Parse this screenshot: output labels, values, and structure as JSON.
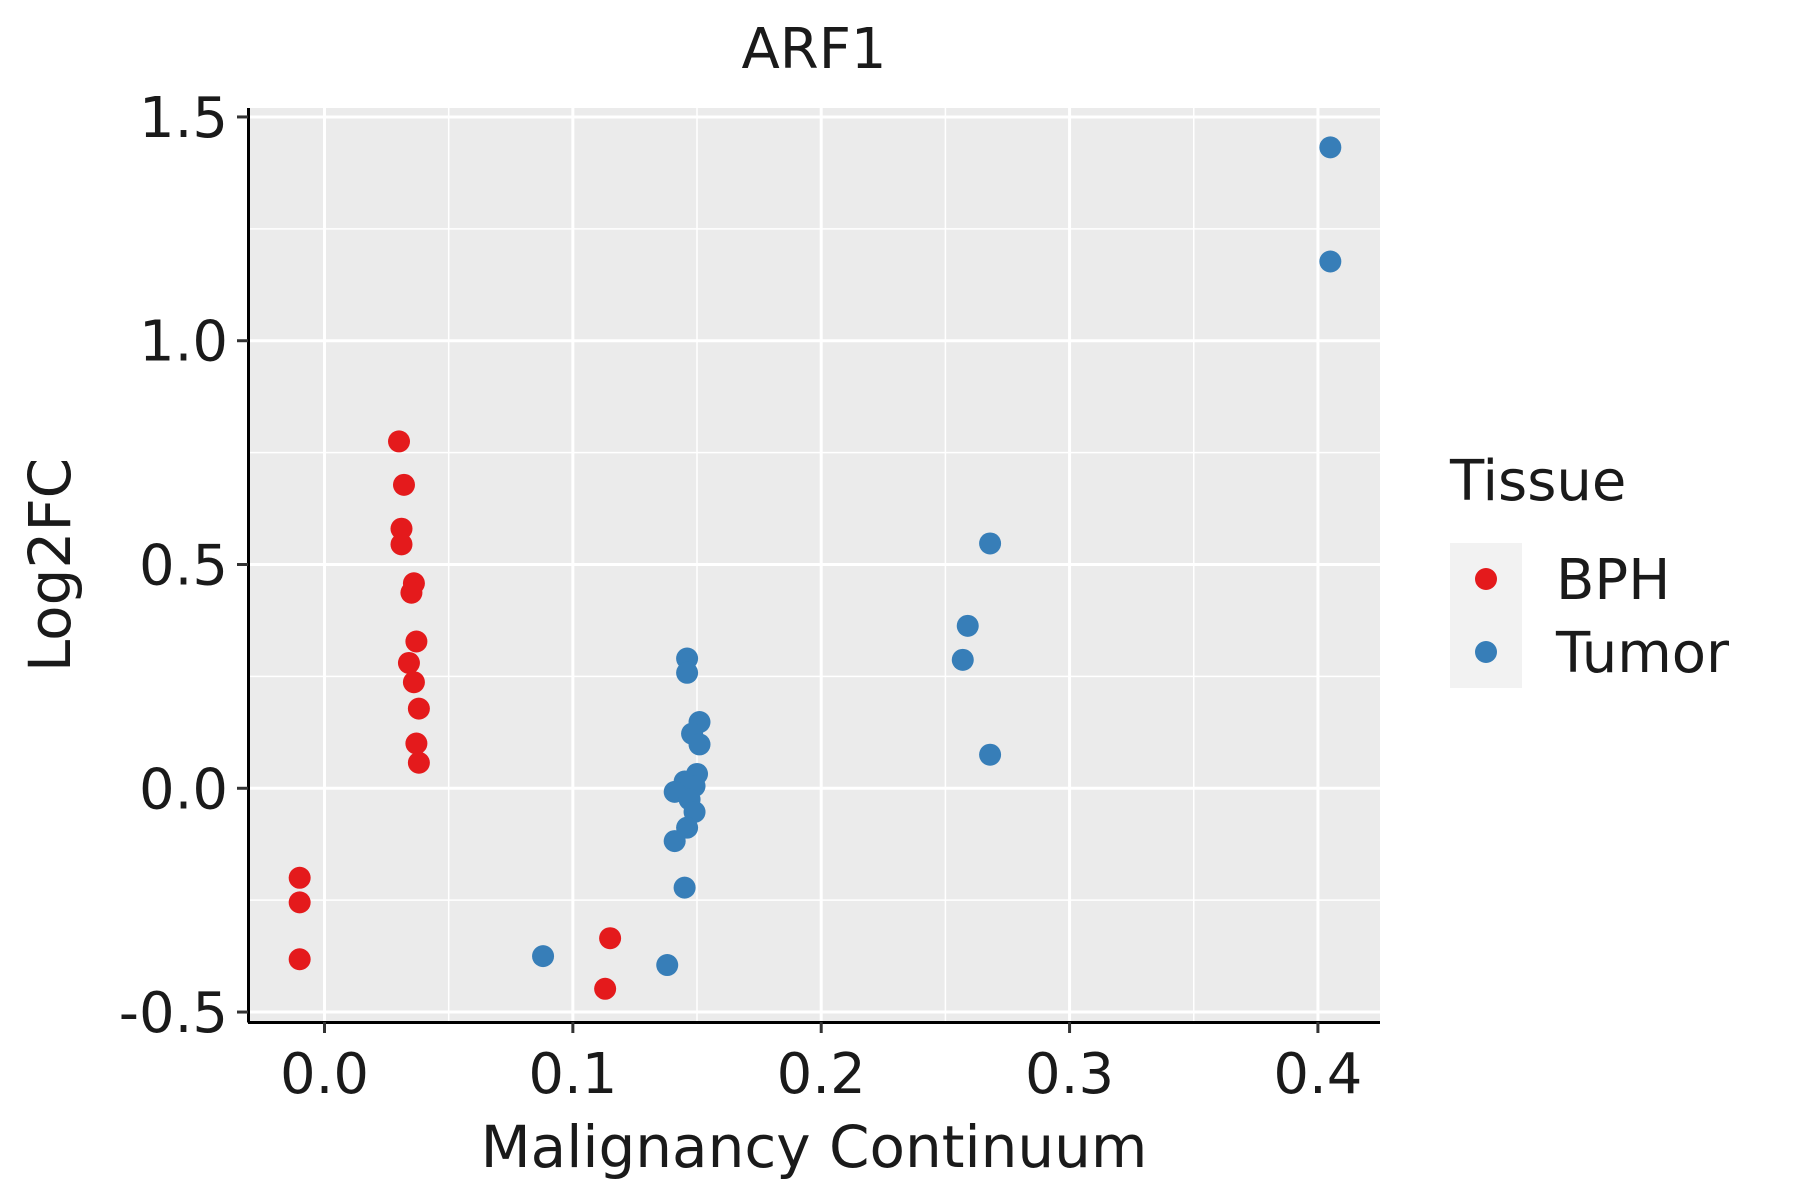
{
  "chart_data": {
    "type": "scatter",
    "title": "ARF1",
    "xlabel": "Malignancy Continuum",
    "ylabel": "Log2FC",
    "xlim": [
      -0.03,
      0.425
    ],
    "ylim": [
      -0.52,
      1.52
    ],
    "x_ticks": [
      0.0,
      0.1,
      0.2,
      0.3,
      0.4
    ],
    "x_tick_labels": [
      "0.0",
      "0.1",
      "0.2",
      "0.3",
      "0.4"
    ],
    "y_ticks": [
      -0.5,
      0.0,
      0.5,
      1.0,
      1.5
    ],
    "y_tick_labels": [
      "-0.5",
      "0.0",
      "0.5",
      "1.0",
      "1.5"
    ],
    "grid": true,
    "legend": {
      "title": "Tissue",
      "placement": "right"
    },
    "series": [
      {
        "name": "BPH",
        "color": "#E41A1C",
        "points": [
          [
            -0.01,
            -0.2
          ],
          [
            -0.01,
            -0.255
          ],
          [
            -0.01,
            -0.382
          ],
          [
            0.03,
            0.775
          ],
          [
            0.032,
            0.678
          ],
          [
            0.031,
            0.58
          ],
          [
            0.031,
            0.545
          ],
          [
            0.036,
            0.458
          ],
          [
            0.035,
            0.437
          ],
          [
            0.037,
            0.328
          ],
          [
            0.034,
            0.28
          ],
          [
            0.036,
            0.237
          ],
          [
            0.038,
            0.178
          ],
          [
            0.037,
            0.1
          ],
          [
            0.038,
            0.057
          ],
          [
            0.115,
            -0.335
          ],
          [
            0.113,
            -0.448
          ]
        ]
      },
      {
        "name": "Tumor",
        "color": "#377EB8",
        "points": [
          [
            0.088,
            -0.375
          ],
          [
            0.138,
            -0.395
          ],
          [
            0.146,
            0.29
          ],
          [
            0.146,
            0.258
          ],
          [
            0.151,
            0.148
          ],
          [
            0.148,
            0.122
          ],
          [
            0.151,
            0.098
          ],
          [
            0.15,
            0.032
          ],
          [
            0.145,
            0.015
          ],
          [
            0.149,
            0.005
          ],
          [
            0.141,
            -0.008
          ],
          [
            0.147,
            -0.025
          ],
          [
            0.149,
            -0.053
          ],
          [
            0.146,
            -0.088
          ],
          [
            0.141,
            -0.118
          ],
          [
            0.145,
            -0.222
          ],
          [
            0.268,
            0.547
          ],
          [
            0.259,
            0.363
          ],
          [
            0.257,
            0.287
          ],
          [
            0.268,
            0.075
          ],
          [
            0.405,
            1.432
          ],
          [
            0.405,
            1.177
          ]
        ]
      }
    ]
  }
}
